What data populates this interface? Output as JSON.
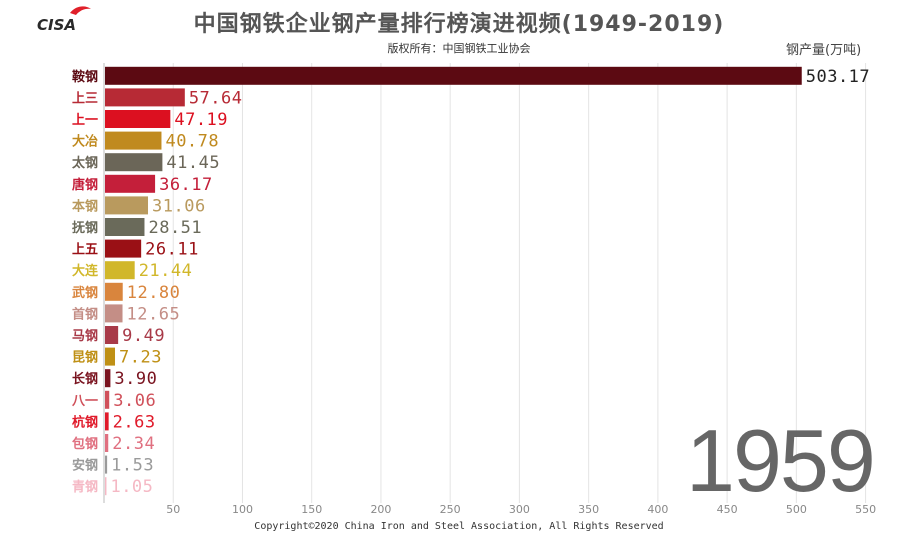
{
  "header": {
    "title": "中国钢铁企业钢产量排行榜演进视频(1949-2019)",
    "subtitle": "版权所有：中国钢铁工业协会",
    "unit": "钢产量(万吨)",
    "logo_text": "CISA"
  },
  "year": "1959",
  "footer": {
    "copyright": "Copyright©2020 China Iron and Steel Association, All Rights Reserved"
  },
  "chart_data": {
    "type": "bar",
    "orientation": "horizontal",
    "categories": [
      "鞍钢",
      "上三",
      "上一",
      "大冶",
      "太钢",
      "唐钢",
      "本钢",
      "抚钢",
      "上五",
      "大连",
      "武钢",
      "首钢",
      "马钢",
      "昆钢",
      "长钢",
      "八一",
      "杭钢",
      "包钢",
      "安钢",
      "青钢"
    ],
    "values": [
      503.17,
      57.64,
      47.19,
      40.78,
      41.45,
      36.17,
      31.06,
      28.51,
      26.11,
      21.44,
      12.8,
      12.65,
      9.49,
      7.23,
      3.9,
      3.06,
      2.63,
      2.34,
      1.53,
      1.05
    ],
    "value_labels": [
      "503.17",
      "57.64",
      "47.19",
      "40.78",
      "41.45",
      "36.17",
      "31.06",
      "28.51",
      "26.11",
      "21.44",
      "12.80",
      "12.65",
      "9.49",
      "7.23",
      "3.90",
      "3.06",
      "2.63",
      "2.34",
      "1.53",
      "1.05"
    ],
    "colors": [
      "#5c0a12",
      "#b72a35",
      "#dc1020",
      "#c08a1f",
      "#6b6658",
      "#c41f3a",
      "#b99a5e",
      "#6a6a5a",
      "#9a1015",
      "#d1b72a",
      "#d9853d",
      "#c48e86",
      "#a83a48",
      "#bf9015",
      "#7a1420",
      "#d0505a",
      "#e01a2a",
      "#e07080",
      "#9a9a9a",
      "#f5b8c4"
    ],
    "xlim": [
      0,
      550
    ],
    "xticks": [
      "50",
      "100",
      "150",
      "200",
      "250",
      "300",
      "350",
      "400",
      "450",
      "500",
      "550"
    ],
    "grid": true
  }
}
